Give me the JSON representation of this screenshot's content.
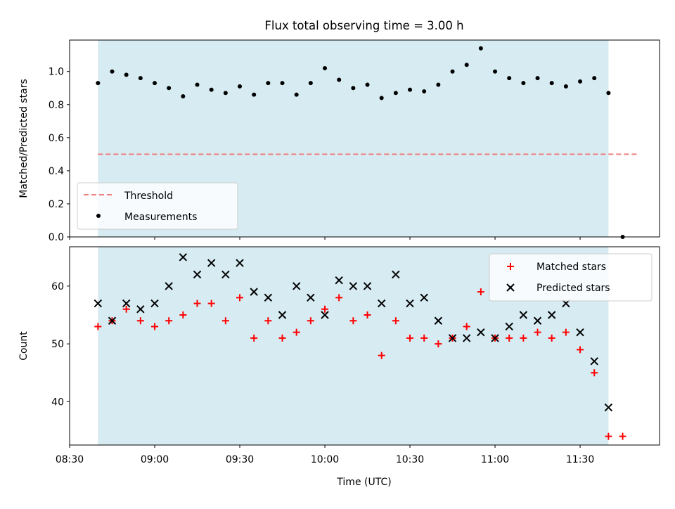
{
  "figure": {
    "title": "Flux total observing time = 3.00 h",
    "xlabel": "Time (UTC)",
    "colors": {
      "shade": "#add8e6",
      "threshold": "#f08080",
      "matched": "#ff0000",
      "predicted": "#000000",
      "measurement": "#000000"
    }
  },
  "chart_data": [
    {
      "type": "scatter",
      "title": "Flux total observing time = 3.00 h",
      "ylabel": "Matched/Predicted stars",
      "xlabel": "",
      "ylim": [
        0,
        1.19
      ],
      "xlim": [
        "08:30",
        "11:58"
      ],
      "yticks": [
        0.0,
        0.2,
        0.4,
        0.6,
        0.8,
        1.0
      ],
      "ytick_labels": [
        "0.0",
        "0.2",
        "0.4",
        "0.6",
        "0.8",
        "1.0"
      ],
      "shaded_span": [
        "08:40",
        "11:40"
      ],
      "threshold": {
        "name": "Threshold",
        "value": 0.5,
        "x": [
          "08:40",
          "11:50"
        ]
      },
      "legend": {
        "location": "lower-left",
        "entries": [
          "Threshold",
          "Measurements"
        ]
      },
      "series": [
        {
          "name": "Measurements",
          "x": [
            "08:40",
            "08:45",
            "08:50",
            "08:55",
            "09:00",
            "09:05",
            "09:10",
            "09:15",
            "09:20",
            "09:25",
            "09:30",
            "09:35",
            "09:40",
            "09:45",
            "09:50",
            "09:55",
            "10:00",
            "10:05",
            "10:10",
            "10:15",
            "10:20",
            "10:25",
            "10:30",
            "10:35",
            "10:40",
            "10:45",
            "10:50",
            "10:55",
            "11:00",
            "11:05",
            "11:10",
            "11:15",
            "11:20",
            "11:25",
            "11:30",
            "11:35",
            "11:40",
            "11:45"
          ],
          "y": [
            0.93,
            1.0,
            0.98,
            0.96,
            0.93,
            0.9,
            0.85,
            0.92,
            0.89,
            0.87,
            0.91,
            0.86,
            0.93,
            0.93,
            0.86,
            0.93,
            1.02,
            0.95,
            0.9,
            0.92,
            0.84,
            0.87,
            0.89,
            0.88,
            0.92,
            1.0,
            1.04,
            1.14,
            1.0,
            0.96,
            0.93,
            0.96,
            0.93,
            0.91,
            0.94,
            0.96,
            0.87,
            0.0
          ]
        }
      ]
    },
    {
      "type": "scatter",
      "ylabel": "Count",
      "xlabel": "Time (UTC)",
      "ylim": [
        32.5,
        66.8
      ],
      "xlim": [
        "08:30",
        "11:58"
      ],
      "yticks": [
        40,
        50,
        60
      ],
      "ytick_labels": [
        "40",
        "50",
        "60"
      ],
      "xticks": [
        "08:30",
        "09:00",
        "09:30",
        "10:00",
        "10:30",
        "11:00",
        "11:30"
      ],
      "shaded_span": [
        "08:40",
        "11:40"
      ],
      "legend": {
        "location": "top-right",
        "entries": [
          "Matched stars",
          "Predicted stars"
        ]
      },
      "series": [
        {
          "name": "Matched stars",
          "marker": "+",
          "x": [
            "08:40",
            "08:45",
            "08:50",
            "08:55",
            "09:00",
            "09:05",
            "09:10",
            "09:15",
            "09:20",
            "09:25",
            "09:30",
            "09:35",
            "09:40",
            "09:45",
            "09:50",
            "09:55",
            "10:00",
            "10:05",
            "10:10",
            "10:15",
            "10:20",
            "10:25",
            "10:30",
            "10:35",
            "10:40",
            "10:45",
            "10:50",
            "10:55",
            "11:00",
            "11:05",
            "11:10",
            "11:15",
            "11:20",
            "11:25",
            "11:30",
            "11:35",
            "11:40",
            "11:45"
          ],
          "y": [
            53,
            54,
            56,
            54,
            53,
            54,
            55,
            57,
            57,
            54,
            58,
            51,
            54,
            51,
            52,
            54,
            56,
            58,
            54,
            55,
            48,
            54,
            51,
            51,
            50,
            51,
            53,
            59,
            51,
            51,
            51,
            52,
            51,
            52,
            49,
            45,
            34,
            34
          ]
        },
        {
          "name": "Predicted stars",
          "marker": "x",
          "x": [
            "08:40",
            "08:45",
            "08:50",
            "08:55",
            "09:00",
            "09:05",
            "09:10",
            "09:15",
            "09:20",
            "09:25",
            "09:30",
            "09:35",
            "09:40",
            "09:45",
            "09:50",
            "09:55",
            "10:00",
            "10:05",
            "10:10",
            "10:15",
            "10:20",
            "10:25",
            "10:30",
            "10:35",
            "10:40",
            "10:45",
            "10:50",
            "10:55",
            "11:00",
            "11:05",
            "11:10",
            "11:15",
            "11:20",
            "11:25",
            "11:30",
            "11:35",
            "11:40"
          ],
          "y": [
            57,
            54,
            57,
            56,
            57,
            60,
            65,
            62,
            64,
            62,
            64,
            59,
            58,
            55,
            60,
            58,
            55,
            61,
            60,
            60,
            57,
            62,
            57,
            58,
            54,
            51,
            51,
            52,
            51,
            53,
            55,
            54,
            55,
            57,
            52,
            47,
            39
          ]
        }
      ]
    }
  ]
}
